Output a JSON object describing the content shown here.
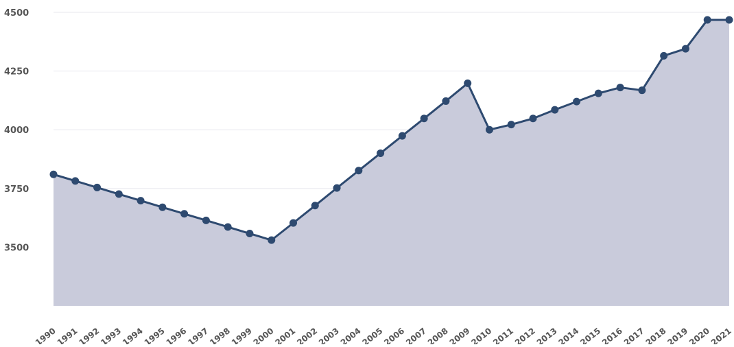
{
  "chart_data": {
    "type": "area",
    "title": "",
    "xlabel": "",
    "ylabel": "",
    "x": [
      "1990",
      "1991",
      "1992",
      "1993",
      "1994",
      "1995",
      "1996",
      "1997",
      "1998",
      "1999",
      "2000",
      "2001",
      "2002",
      "2003",
      "2004",
      "2005",
      "2006",
      "2007",
      "2008",
      "2009",
      "2010",
      "2011",
      "2012",
      "2013",
      "2014",
      "2015",
      "2016",
      "2017",
      "2018",
      "2019",
      "2020",
      "2021"
    ],
    "series": [
      {
        "values": [
          3810,
          3782,
          3754,
          3726,
          3698,
          3670,
          3642,
          3614,
          3586,
          3558,
          3530,
          3603,
          3677,
          3752,
          3826,
          3900,
          3974,
          4048,
          4122,
          4198,
          4000,
          4022,
          4048,
          4085,
          4120,
          4155,
          4180,
          4168,
          4315,
          4345,
          4468,
          4468
        ]
      }
    ],
    "ylim": [
      3250,
      4500
    ],
    "yticks": [
      3500,
      3750,
      4000,
      4250,
      4500
    ],
    "grid": true,
    "colors": {
      "line": "#2e4a70",
      "fill": "#c9cbdb",
      "grid": "#e7e7ee",
      "text": "#555555"
    }
  }
}
